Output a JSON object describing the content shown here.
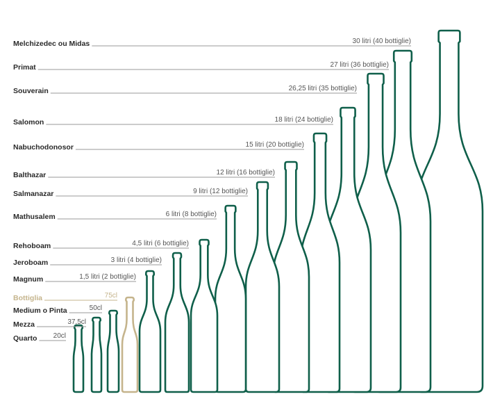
{
  "colors": {
    "bottle": "#0f5f4a",
    "highlight": "#c5b48c",
    "text": "#2a2a2a",
    "leader": "#9a9a9a"
  },
  "bottles": [
    {
      "name": "Melchizedec ou Midas",
      "volume": "30 litri (40 bottiglie)",
      "litres": 30
    },
    {
      "name": "Primat",
      "volume": "27 litri (36 bottiglie)",
      "litres": 27
    },
    {
      "name": "Souverain",
      "volume": "26,25 litri (35 bottiglie)",
      "litres": 26.25
    },
    {
      "name": "Salomon",
      "volume": "18 litri (24 bottiglie)",
      "litres": 18
    },
    {
      "name": "Nabuchodonosor",
      "volume": "15 litri (20 bottiglie)",
      "litres": 15
    },
    {
      "name": "Balthazar",
      "volume": "12 litri (16 bottiglie)",
      "litres": 12
    },
    {
      "name": "Salmanazar",
      "volume": "9 litri (12 bottiglie)",
      "litres": 9
    },
    {
      "name": "Mathusalem",
      "volume": "6 litri (8 bottiglie)",
      "litres": 6
    },
    {
      "name": "Rehoboam",
      "volume": "4,5 litri (6 bottiglie)",
      "litres": 4.5
    },
    {
      "name": "Jeroboam",
      "volume": "3 litri (4 bottiglie)",
      "litres": 3
    },
    {
      "name": "Magnum",
      "volume": "1,5 litri (2 bottiglie)",
      "litres": 1.5
    },
    {
      "name": "Bottiglia",
      "volume": "75cl",
      "litres": 0.75,
      "highlight": true
    },
    {
      "name": "Medium o Pinta",
      "volume": "50cl",
      "litres": 0.5
    },
    {
      "name": "Mezza",
      "volume": "37,5cl",
      "litres": 0.375
    },
    {
      "name": "Quarto",
      "volume": "20cl",
      "litres": 0.2
    }
  ]
}
